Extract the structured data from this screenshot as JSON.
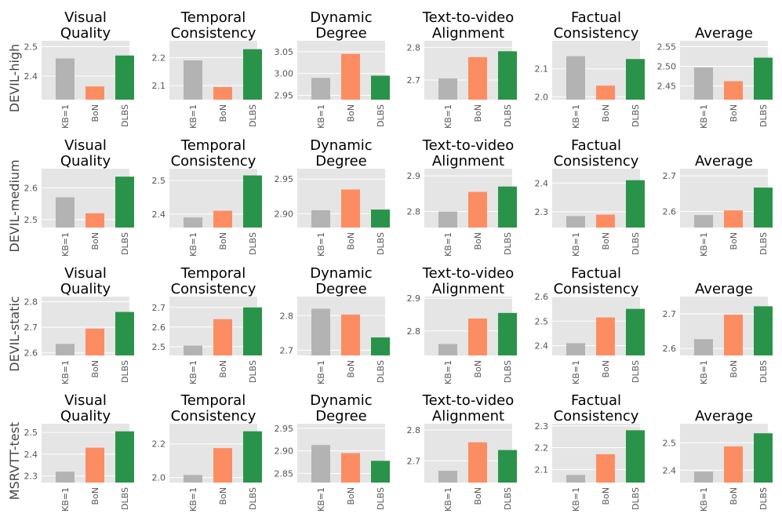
{
  "figure": {
    "row_labels": [
      "DEVIL-high",
      "DEVIL-medium",
      "DEVIL-static",
      "MSRVTT-test"
    ],
    "column_titles": [
      [
        "Visual",
        "Quality"
      ],
      [
        "Temporal",
        "Consistency"
      ],
      [
        "Dynamic",
        "Degree"
      ],
      [
        "Text-to-video",
        "Alignment"
      ],
      [
        "Factual",
        "Consistency"
      ],
      [
        "Average"
      ]
    ],
    "colors": {
      "KB=1": "#b3b3b3",
      "BoN": "#fc8d62",
      "DLBS": "#2a934a",
      "panel_bg": "#e5e5e5",
      "grid": "#ffffff"
    }
  },
  "chart_data": [
    {
      "type": "bar",
      "row": "DEVIL-high",
      "title": "Visual Quality",
      "categories": [
        "KB=1",
        "BoN",
        "DLBS"
      ],
      "values": [
        2.46,
        2.365,
        2.47
      ],
      "ylim": [
        2.32,
        2.52
      ],
      "yticks": [
        2.4,
        2.5
      ],
      "ytick_labels": [
        "2.4",
        "2.5"
      ]
    },
    {
      "type": "bar",
      "row": "DEVIL-high",
      "title": "Temporal Consistency",
      "categories": [
        "KB=1",
        "BoN",
        "DLBS"
      ],
      "values": [
        2.19,
        2.095,
        2.23
      ],
      "ylim": [
        2.05,
        2.26
      ],
      "yticks": [
        2.1,
        2.2
      ],
      "ytick_labels": [
        "2.1",
        "2.2"
      ]
    },
    {
      "type": "bar",
      "row": "DEVIL-high",
      "title": "Dynamic Degree",
      "categories": [
        "KB=1",
        "BoN",
        "DLBS"
      ],
      "values": [
        2.99,
        3.045,
        2.995
      ],
      "ylim": [
        2.94,
        3.075
      ],
      "yticks": [
        2.95,
        3.0,
        3.05
      ],
      "ytick_labels": [
        "2.95",
        "3.00",
        "3.05"
      ]
    },
    {
      "type": "bar",
      "row": "DEVIL-high",
      "title": "Text-to-video Alignment",
      "categories": [
        "KB=1",
        "BoN",
        "DLBS"
      ],
      "values": [
        2.705,
        2.77,
        2.788
      ],
      "ylim": [
        2.64,
        2.82
      ],
      "yticks": [
        2.7,
        2.8
      ],
      "ytick_labels": [
        "2.7",
        "2.8"
      ]
    },
    {
      "type": "bar",
      "row": "DEVIL-high",
      "title": "Factual Consistency",
      "categories": [
        "KB=1",
        "BoN",
        "DLBS"
      ],
      "values": [
        2.145,
        2.04,
        2.135
      ],
      "ylim": [
        1.99,
        2.2
      ],
      "yticks": [
        2.0,
        2.1
      ],
      "ytick_labels": [
        "2.0",
        "2.1"
      ]
    },
    {
      "type": "bar",
      "row": "DEVIL-high",
      "title": "Average",
      "categories": [
        "KB=1",
        "BoN",
        "DLBS"
      ],
      "values": [
        2.497,
        2.462,
        2.522
      ],
      "ylim": [
        2.415,
        2.565
      ],
      "yticks": [
        2.45,
        2.5,
        2.55
      ],
      "ytick_labels": [
        "2.45",
        "2.50",
        "2.55"
      ]
    },
    {
      "type": "bar",
      "row": "DEVIL-medium",
      "title": "Visual Quality",
      "categories": [
        "KB=1",
        "BoN",
        "DLBS"
      ],
      "values": [
        2.57,
        2.52,
        2.635
      ],
      "ylim": [
        2.475,
        2.66
      ],
      "yticks": [
        2.5,
        2.6
      ],
      "ytick_labels": [
        "2.5",
        "2.6"
      ]
    },
    {
      "type": "bar",
      "row": "DEVIL-medium",
      "title": "Temporal Consistency",
      "categories": [
        "KB=1",
        "BoN",
        "DLBS"
      ],
      "values": [
        2.39,
        2.41,
        2.515
      ],
      "ylim": [
        2.36,
        2.535
      ],
      "yticks": [
        2.4,
        2.5
      ],
      "ytick_labels": [
        "2.4",
        "2.5"
      ]
    },
    {
      "type": "bar",
      "row": "DEVIL-medium",
      "title": "Dynamic Degree",
      "categories": [
        "KB=1",
        "BoN",
        "DLBS"
      ],
      "values": [
        2.905,
        2.935,
        2.906
      ],
      "ylim": [
        2.88,
        2.965
      ],
      "yticks": [
        2.9,
        2.95
      ],
      "ytick_labels": [
        "2.90",
        "2.95"
      ]
    },
    {
      "type": "bar",
      "row": "DEVIL-medium",
      "title": "Text-to-video Alignment",
      "categories": [
        "KB=1",
        "BoN",
        "DLBS"
      ],
      "values": [
        2.8,
        2.855,
        2.87
      ],
      "ylim": [
        2.755,
        2.92
      ],
      "yticks": [
        2.8,
        2.9
      ],
      "ytick_labels": [
        "2.8",
        "2.9"
      ]
    },
    {
      "type": "bar",
      "row": "DEVIL-medium",
      "title": "Factual Consistency",
      "categories": [
        "KB=1",
        "BoN",
        "DLBS"
      ],
      "values": [
        2.285,
        2.29,
        2.41
      ],
      "ylim": [
        2.245,
        2.45
      ],
      "yticks": [
        2.3,
        2.4
      ],
      "ytick_labels": [
        "2.3",
        "2.4"
      ]
    },
    {
      "type": "bar",
      "row": "DEVIL-medium",
      "title": "Average",
      "categories": [
        "KB=1",
        "BoN",
        "DLBS"
      ],
      "values": [
        2.59,
        2.603,
        2.667
      ],
      "ylim": [
        2.555,
        2.72
      ],
      "yticks": [
        2.6,
        2.7
      ],
      "ytick_labels": [
        "2.6",
        "2.7"
      ]
    },
    {
      "type": "bar",
      "row": "DEVIL-static",
      "title": "Visual Quality",
      "categories": [
        "KB=1",
        "BoN",
        "DLBS"
      ],
      "values": [
        2.635,
        2.695,
        2.76
      ],
      "ylim": [
        2.59,
        2.82
      ],
      "yticks": [
        2.6,
        2.7,
        2.8
      ],
      "ytick_labels": [
        "2.6",
        "2.7",
        "2.8"
      ]
    },
    {
      "type": "bar",
      "row": "DEVIL-static",
      "title": "Temporal Consistency",
      "categories": [
        "KB=1",
        "BoN",
        "DLBS"
      ],
      "values": [
        2.505,
        2.64,
        2.7
      ],
      "ylim": [
        2.455,
        2.755
      ],
      "yticks": [
        2.5,
        2.6,
        2.7
      ],
      "ytick_labels": [
        "2.5",
        "2.6",
        "2.7"
      ]
    },
    {
      "type": "bar",
      "row": "DEVIL-static",
      "title": "Dynamic Degree",
      "categories": [
        "KB=1",
        "BoN",
        "DLBS"
      ],
      "values": [
        2.82,
        2.803,
        2.737
      ],
      "ylim": [
        2.685,
        2.855
      ],
      "yticks": [
        2.7,
        2.8
      ],
      "ytick_labels": [
        "2.7",
        "2.8"
      ]
    },
    {
      "type": "bar",
      "row": "DEVIL-static",
      "title": "Text-to-video Alignment",
      "categories": [
        "KB=1",
        "BoN",
        "DLBS"
      ],
      "values": [
        2.76,
        2.838,
        2.855
      ],
      "ylim": [
        2.725,
        2.905
      ],
      "yticks": [
        2.8,
        2.9
      ],
      "ytick_labels": [
        "2.8",
        "2.9"
      ]
    },
    {
      "type": "bar",
      "row": "DEVIL-static",
      "title": "Factual Consistency",
      "categories": [
        "KB=1",
        "BoN",
        "DLBS"
      ],
      "values": [
        2.41,
        2.515,
        2.55
      ],
      "ylim": [
        2.36,
        2.6
      ],
      "yticks": [
        2.4,
        2.5,
        2.6
      ],
      "ytick_labels": [
        "2.4",
        "2.5",
        "2.6"
      ]
    },
    {
      "type": "bar",
      "row": "DEVIL-static",
      "title": "Average",
      "categories": [
        "KB=1",
        "BoN",
        "DLBS"
      ],
      "values": [
        2.627,
        2.698,
        2.722
      ],
      "ylim": [
        2.58,
        2.75
      ],
      "yticks": [
        2.6,
        2.7
      ],
      "ytick_labels": [
        "2.6",
        "2.7"
      ]
    },
    {
      "type": "bar",
      "row": "MSRVTT-test",
      "title": "Visual Quality",
      "categories": [
        "KB=1",
        "BoN",
        "DLBS"
      ],
      "values": [
        2.32,
        2.43,
        2.505
      ],
      "ylim": [
        2.27,
        2.54
      ],
      "yticks": [
        2.3,
        2.4,
        2.5
      ],
      "ytick_labels": [
        "2.3",
        "2.4",
        "2.5"
      ]
    },
    {
      "type": "bar",
      "row": "MSRVTT-test",
      "title": "Temporal Consistency",
      "categories": [
        "KB=1",
        "BoN",
        "DLBS"
      ],
      "values": [
        2.015,
        2.175,
        2.275
      ],
      "ylim": [
        1.97,
        2.32
      ],
      "yticks": [
        2.0,
        2.2
      ],
      "ytick_labels": [
        "2.0",
        "2.2"
      ]
    },
    {
      "type": "bar",
      "row": "MSRVTT-test",
      "title": "Dynamic Degree",
      "categories": [
        "KB=1",
        "BoN",
        "DLBS"
      ],
      "values": [
        2.913,
        2.895,
        2.878
      ],
      "ylim": [
        2.83,
        2.96
      ],
      "yticks": [
        2.85,
        2.9,
        2.95
      ],
      "ytick_labels": [
        "2.85",
        "2.90",
        "2.95"
      ]
    },
    {
      "type": "bar",
      "row": "MSRVTT-test",
      "title": "Text-to-video Alignment",
      "categories": [
        "KB=1",
        "BoN",
        "DLBS"
      ],
      "values": [
        2.668,
        2.76,
        2.735
      ],
      "ylim": [
        2.63,
        2.82
      ],
      "yticks": [
        2.7,
        2.8
      ],
      "ytick_labels": [
        "2.7",
        "2.8"
      ]
    },
    {
      "type": "bar",
      "row": "MSRVTT-test",
      "title": "Factual Consistency",
      "categories": [
        "KB=1",
        "BoN",
        "DLBS"
      ],
      "values": [
        2.075,
        2.17,
        2.28
      ],
      "ylim": [
        2.04,
        2.31
      ],
      "yticks": [
        2.1,
        2.2,
        2.3
      ],
      "ytick_labels": [
        "2.1",
        "2.2",
        "2.3"
      ]
    },
    {
      "type": "bar",
      "row": "MSRVTT-test",
      "title": "Average",
      "categories": [
        "KB=1",
        "BoN",
        "DLBS"
      ],
      "values": [
        2.395,
        2.487,
        2.535
      ],
      "ylim": [
        2.355,
        2.57
      ],
      "yticks": [
        2.4,
        2.5
      ],
      "ytick_labels": [
        "2.4",
        "2.5"
      ]
    }
  ]
}
